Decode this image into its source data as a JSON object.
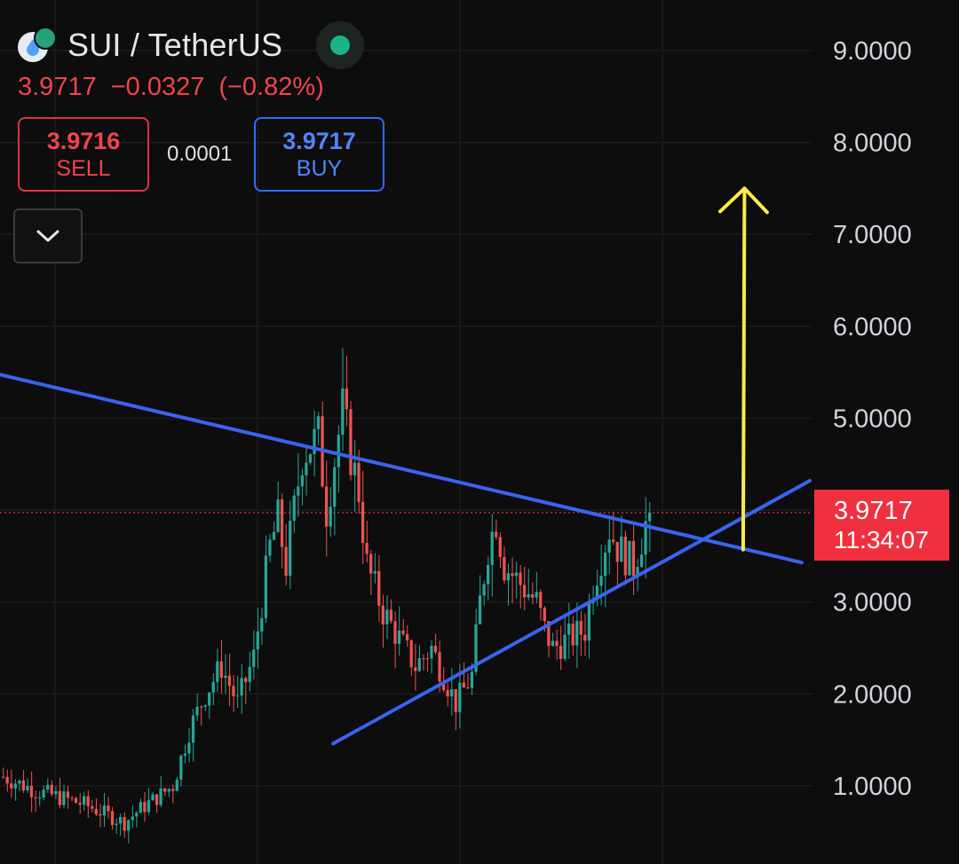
{
  "header": {
    "pair": "SUI / TetherUS",
    "last_price": "3.9717",
    "change": "−0.0327",
    "change_pct": "(−0.82%)",
    "market_status_color": "#1ab38a",
    "base_icon": "sui-drop-icon",
    "quote_icon": "tether-icon"
  },
  "trade": {
    "sell_price": "3.9716",
    "sell_label": "SELL",
    "spread": "0.0001",
    "buy_price": "3.9717",
    "buy_label": "BUY"
  },
  "collapse_icon": "chevron-down-icon",
  "price_tag": {
    "value": "3.9717",
    "countdown": "11:34:07",
    "color": "#f0303f"
  },
  "chart_data": {
    "type": "candlestick",
    "title": "",
    "xlabel": "",
    "ylabel": "",
    "y_axis_position": "right",
    "y_tick_labels": [
      "1.0000",
      "2.0000",
      "3.0000",
      "4.0000",
      "5.0000",
      "6.0000",
      "7.0000",
      "8.0000",
      "9.0000"
    ],
    "y_tick_values": [
      1,
      2,
      3,
      4,
      5,
      6,
      7,
      8,
      9
    ],
    "ylim": [
      0.15,
      9.55
    ],
    "current_price": 3.9717,
    "up_color": "#26a69a",
    "down_color": "#ef5350",
    "price_path": [
      [
        0,
        1.1
      ],
      [
        8,
        0.95
      ],
      [
        20,
        0.8
      ],
      [
        30,
        0.6
      ],
      [
        34,
        0.75
      ],
      [
        42,
        1.0
      ],
      [
        46,
        1.6
      ],
      [
        50,
        2.0
      ],
      [
        54,
        2.3
      ],
      [
        58,
        1.9
      ],
      [
        62,
        2.4
      ],
      [
        66,
        3.6
      ],
      [
        68,
        3.9
      ],
      [
        70,
        3.4
      ],
      [
        74,
        4.6
      ],
      [
        78,
        4.8
      ],
      [
        80,
        4.0
      ],
      [
        84,
        5.1
      ],
      [
        86,
        4.6
      ],
      [
        88,
        4.2
      ],
      [
        90,
        3.4
      ],
      [
        94,
        2.9
      ],
      [
        98,
        2.6
      ],
      [
        102,
        2.3
      ],
      [
        106,
        2.5
      ],
      [
        110,
        2.1
      ],
      [
        112,
        1.9
      ],
      [
        116,
        2.2
      ],
      [
        118,
        3.0
      ],
      [
        120,
        3.6
      ],
      [
        122,
        3.9
      ],
      [
        124,
        3.4
      ],
      [
        128,
        3.2
      ],
      [
        132,
        3.0
      ],
      [
        134,
        2.7
      ],
      [
        136,
        2.5
      ],
      [
        140,
        2.6
      ],
      [
        144,
        2.7
      ],
      [
        146,
        3.2
      ],
      [
        150,
        3.8
      ],
      [
        152,
        3.6
      ],
      [
        156,
        3.4
      ],
      [
        158,
        3.7
      ],
      [
        160,
        4.0
      ]
    ],
    "annotations": [
      {
        "type": "trendline",
        "name": "upper",
        "color": "#3a63f0",
        "from": [
          -2,
          5.49
        ],
        "to": [
          198,
          3.43
        ]
      },
      {
        "type": "trendline",
        "name": "lower",
        "color": "#3a63f0",
        "from": [
          82,
          1.46
        ],
        "to": [
          200,
          4.32
        ]
      },
      {
        "type": "arrow",
        "direction": "up",
        "color": "#ffe94a",
        "from": [
          183.5,
          3.57
        ],
        "to": [
          183.5,
          7.5
        ]
      }
    ]
  }
}
